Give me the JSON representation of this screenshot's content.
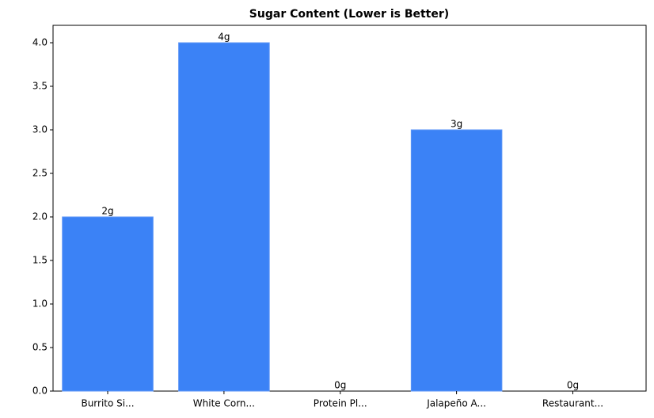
{
  "chart_data": {
    "type": "bar",
    "title": "Sugar Content (Lower is Better)",
    "categories": [
      "Burrito Si...",
      "White Corn...",
      "Protein Pl...",
      "Jalapeño A...",
      "Restaurant..."
    ],
    "values": [
      2,
      4,
      0,
      3,
      0
    ],
    "value_labels": [
      "2g",
      "4g",
      "0g",
      "3g",
      "0g"
    ],
    "color": "#3b82f6",
    "ylim": [
      0,
      4.2
    ],
    "yticks": [
      {
        "value": 0,
        "label": "0.0"
      },
      {
        "value": 0.5,
        "label": "0.5"
      },
      {
        "value": 1,
        "label": "1.0"
      },
      {
        "value": 1.5,
        "label": "1.5"
      },
      {
        "value": 2,
        "label": "2.0"
      },
      {
        "value": 2.5,
        "label": "2.5"
      },
      {
        "value": 3,
        "label": "3.0"
      },
      {
        "value": 3.5,
        "label": "3.5"
      },
      {
        "value": 4,
        "label": "4.0"
      }
    ]
  }
}
